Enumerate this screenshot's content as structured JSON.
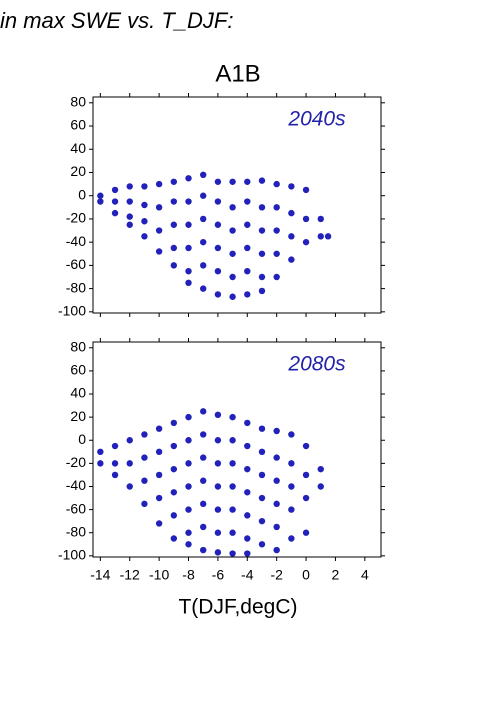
{
  "header": "in max SWE vs. T_DJF:",
  "chart_data": [
    {
      "type": "scatter",
      "title": "A1B",
      "label": "2040s",
      "color": "#2222bb",
      "label_color": "#2222aa",
      "xlim": [
        -14.5,
        5.1
      ],
      "ylim": [
        -101,
        85
      ],
      "xticks": [
        -14,
        -12,
        -10,
        -8,
        -6,
        -4,
        -2,
        0,
        2,
        4
      ],
      "yticks": [
        -100,
        -80,
        -60,
        -40,
        -20,
        0,
        20,
        40,
        60,
        80
      ],
      "show_xtick_labels": false,
      "x": [
        -14,
        -14,
        -13,
        -13,
        -13,
        -12,
        -12,
        -12,
        -12,
        -11,
        -11,
        -11,
        -11,
        -10,
        -10,
        -10,
        -10,
        -9,
        -9,
        -9,
        -9,
        -9,
        -8,
        -8,
        -8,
        -8,
        -8,
        -8,
        -7,
        -7,
        -7,
        -7,
        -7,
        -7,
        -6,
        -6,
        -6,
        -6,
        -6,
        -6,
        -5,
        -5,
        -5,
        -5,
        -5,
        -5,
        -4,
        -4,
        -4,
        -4,
        -4,
        -4,
        -3,
        -3,
        -3,
        -3,
        -3,
        -3,
        -2,
        -2,
        -2,
        -2,
        -2,
        -1,
        -1,
        -1,
        -1,
        0,
        0,
        0,
        1,
        1,
        1.5
      ],
      "y": [
        0,
        -5,
        5,
        -5,
        -15,
        8,
        -5,
        -18,
        -25,
        8,
        -8,
        -22,
        -35,
        10,
        -10,
        -30,
        -48,
        12,
        -5,
        -25,
        -45,
        -60,
        15,
        -5,
        -25,
        -45,
        -65,
        -75,
        18,
        0,
        -20,
        -40,
        -60,
        -80,
        12,
        -5,
        -25,
        -45,
        -65,
        -85,
        12,
        -10,
        -30,
        -50,
        -70,
        -87,
        12,
        -5,
        -25,
        -45,
        -65,
        -85,
        13,
        -10,
        -30,
        -50,
        -70,
        -82,
        10,
        -10,
        -30,
        -50,
        -70,
        8,
        -15,
        -35,
        -55,
        5,
        -20,
        -40,
        -20,
        -35,
        -35
      ]
    },
    {
      "type": "scatter",
      "label": "2080s",
      "color": "#2222bb",
      "label_color": "#2222aa",
      "xlabel": "T(DJF,degC)",
      "xlim": [
        -14.5,
        5.1
      ],
      "ylim": [
        -101,
        85
      ],
      "xticks": [
        -14,
        -12,
        -10,
        -8,
        -6,
        -4,
        -2,
        0,
        2,
        4
      ],
      "yticks": [
        -100,
        -80,
        -60,
        -40,
        -20,
        0,
        20,
        40,
        60,
        80
      ],
      "show_xtick_labels": true,
      "x": [
        -14,
        -14,
        -13,
        -13,
        -13,
        -12,
        -12,
        -12,
        -11,
        -11,
        -11,
        -11,
        -10,
        -10,
        -10,
        -10,
        -10,
        -9,
        -9,
        -9,
        -9,
        -9,
        -9,
        -8,
        -8,
        -8,
        -8,
        -8,
        -8,
        -8,
        -7,
        -7,
        -7,
        -7,
        -7,
        -7,
        -7,
        -6,
        -6,
        -6,
        -6,
        -6,
        -6,
        -6,
        -5,
        -5,
        -5,
        -5,
        -5,
        -5,
        -5,
        -4,
        -4,
        -4,
        -4,
        -4,
        -4,
        -4,
        -3,
        -3,
        -3,
        -3,
        -3,
        -3,
        -2,
        -2,
        -2,
        -2,
        -2,
        -2,
        -1,
        -1,
        -1,
        -1,
        -1,
        0,
        0,
        0,
        0,
        1,
        1
      ],
      "y": [
        -10,
        -20,
        -5,
        -20,
        -30,
        0,
        -20,
        -40,
        5,
        -15,
        -35,
        -55,
        10,
        -10,
        -30,
        -50,
        -72,
        15,
        -5,
        -25,
        -45,
        -65,
        -85,
        20,
        0,
        -20,
        -40,
        -60,
        -80,
        -90,
        25,
        5,
        -15,
        -35,
        -55,
        -75,
        -95,
        22,
        0,
        -20,
        -40,
        -60,
        -80,
        -97,
        20,
        0,
        -20,
        -40,
        -60,
        -80,
        -98,
        15,
        -5,
        -25,
        -45,
        -65,
        -85,
        -98,
        10,
        -10,
        -30,
        -50,
        -70,
        -90,
        8,
        -15,
        -35,
        -55,
        -75,
        -95,
        5,
        -20,
        -40,
        -60,
        -85,
        -5,
        -30,
        -50,
        -80,
        -25,
        -40
      ]
    }
  ]
}
